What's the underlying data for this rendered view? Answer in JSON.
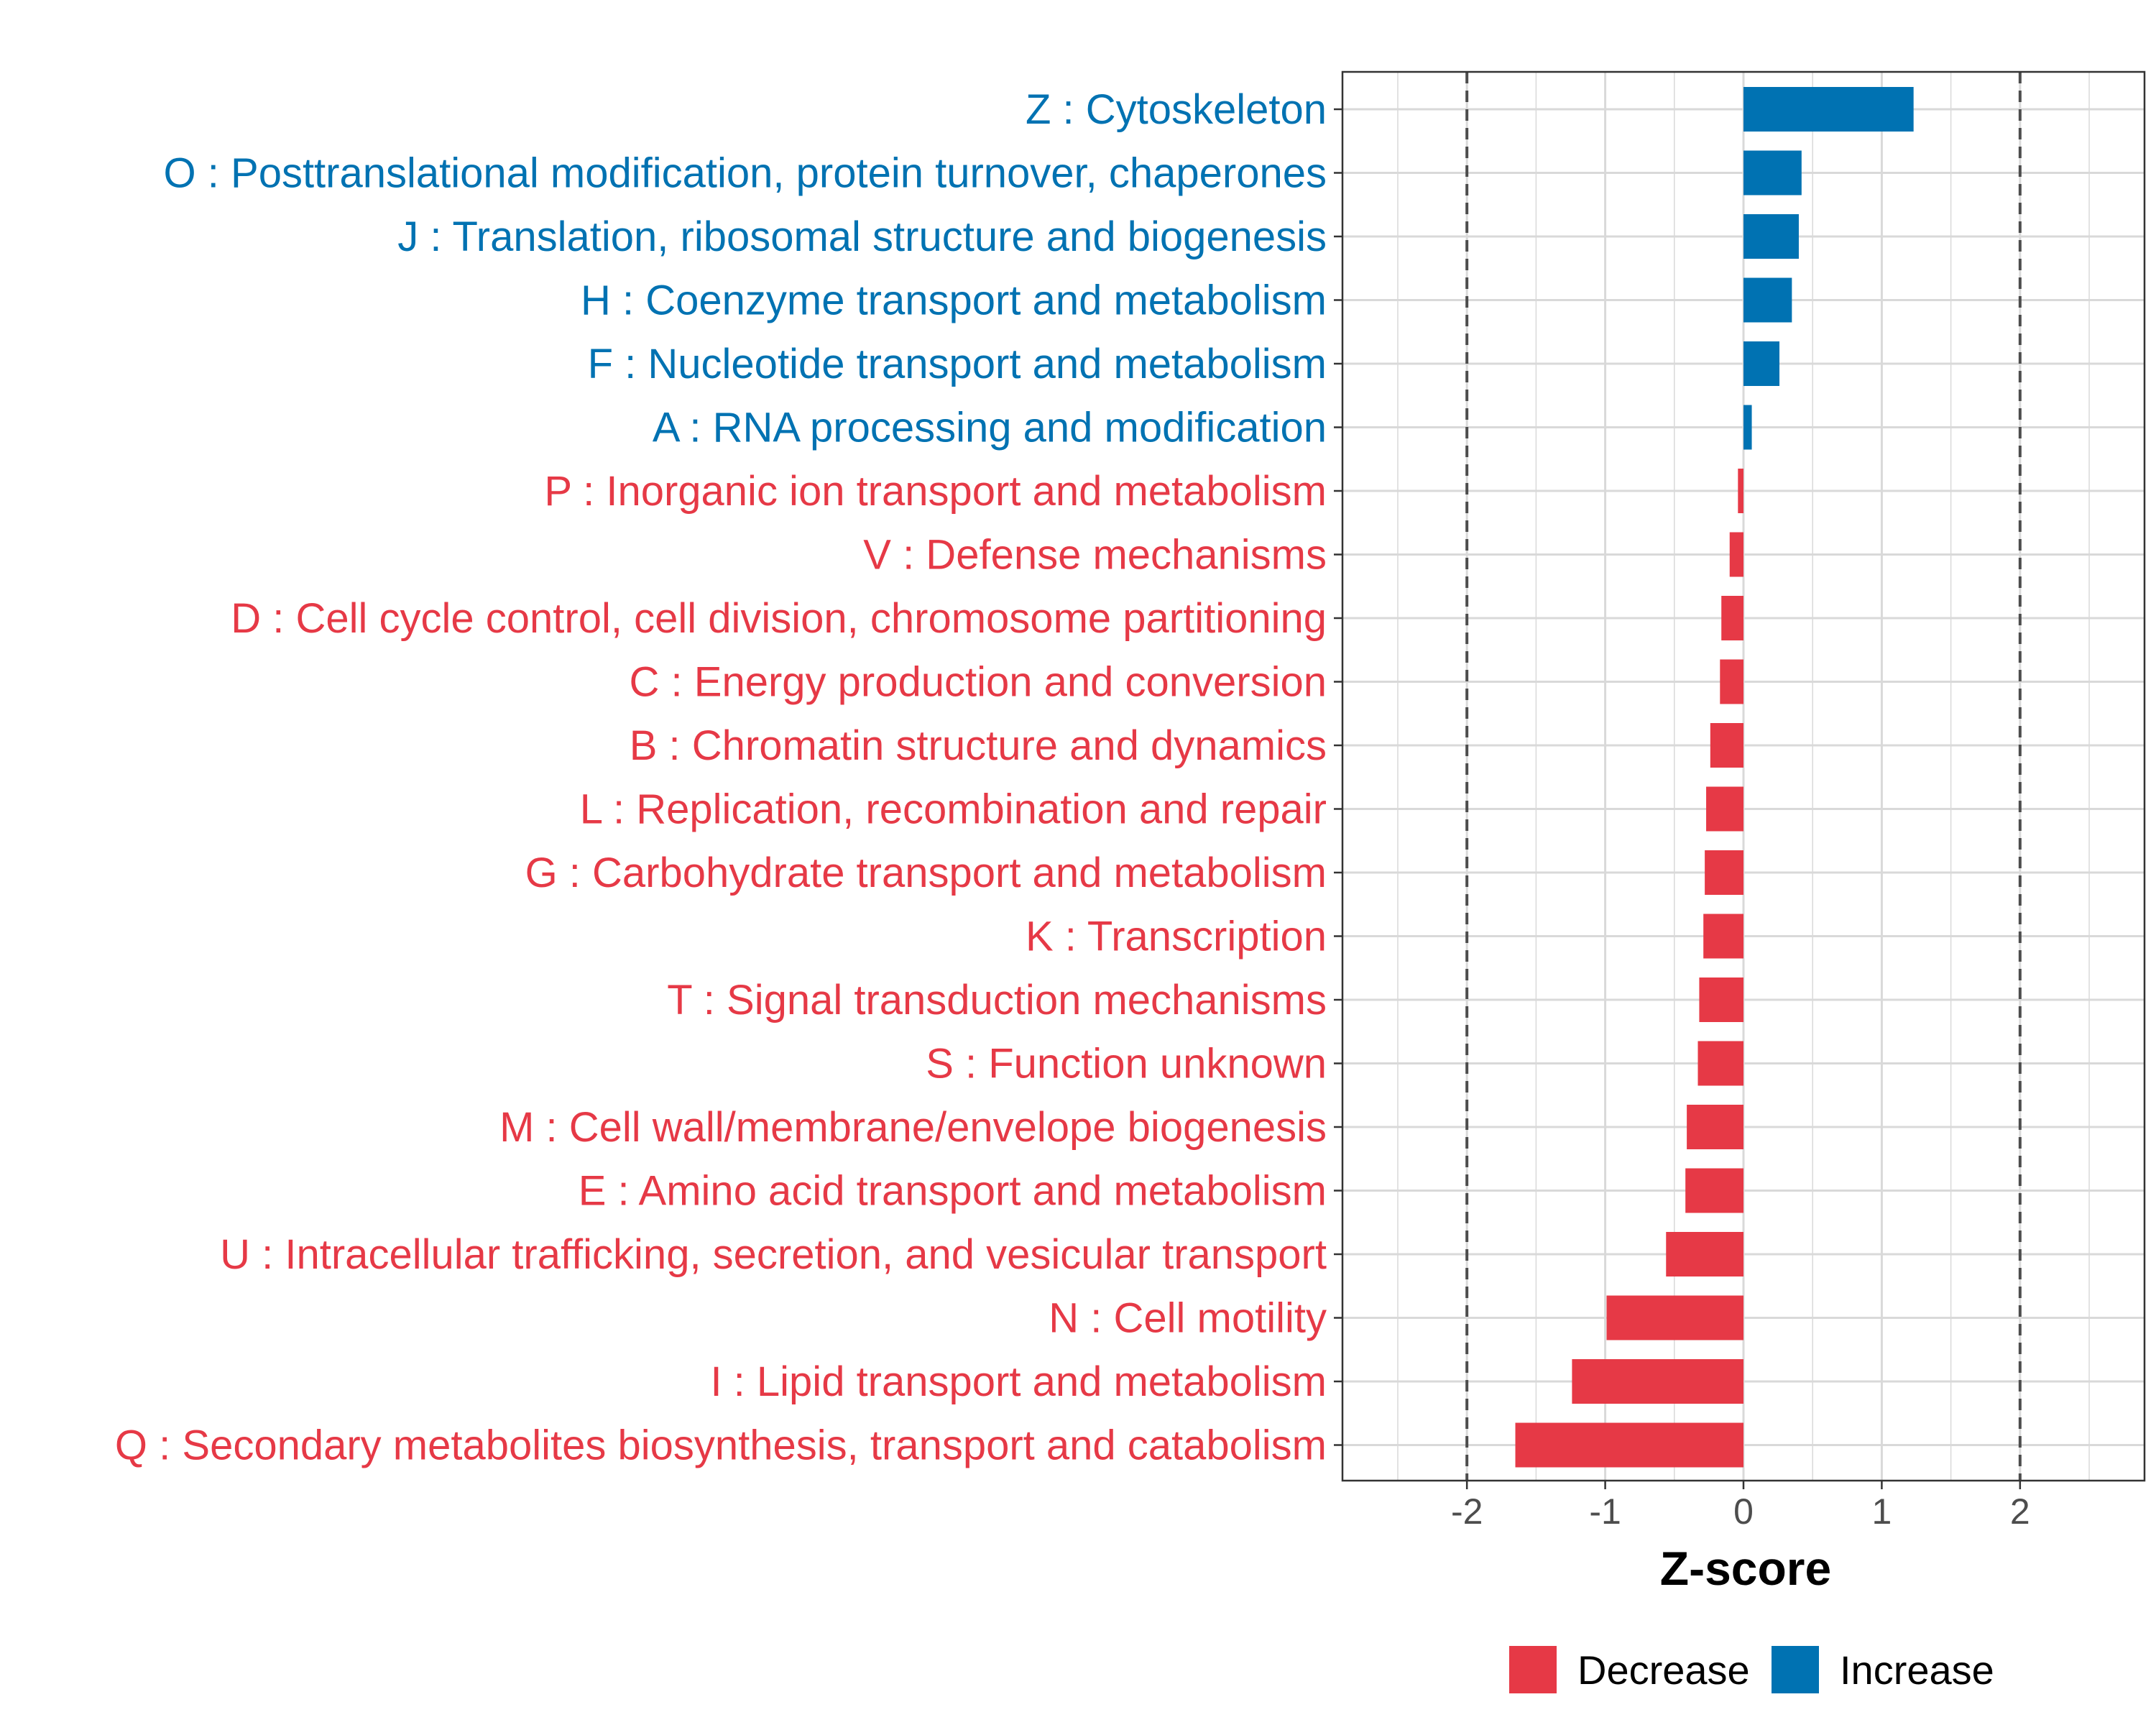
{
  "chart_data": {
    "type": "bar",
    "orientation": "horizontal",
    "xlabel": "Z-score",
    "ylabel": "",
    "xlim": [
      -2.9,
      2.9
    ],
    "x_ticks": [
      -2,
      -1,
      0,
      1,
      2
    ],
    "x_tick_labels": [
      "-2",
      "-1",
      "0",
      "1",
      "2"
    ],
    "reference_lines": [
      -2,
      2
    ],
    "grid": true,
    "legend_position": "bottom",
    "legend": [
      {
        "name": "Decrease",
        "color": "#E63946"
      },
      {
        "name": "Increase",
        "color": "#0072B2"
      }
    ],
    "categories": [
      {
        "label": "Z : Cytoskeleton",
        "value": 1.23,
        "group": "Increase"
      },
      {
        "label": "O : Posttranslational modification, protein turnover, chaperones",
        "value": 0.42,
        "group": "Increase"
      },
      {
        "label": "J : Translation, ribosomal structure and biogenesis",
        "value": 0.4,
        "group": "Increase"
      },
      {
        "label": "H : Coenzyme transport and metabolism",
        "value": 0.35,
        "group": "Increase"
      },
      {
        "label": "F : Nucleotide transport and metabolism",
        "value": 0.26,
        "group": "Increase"
      },
      {
        "label": "A : RNA processing and modification",
        "value": 0.06,
        "group": "Increase"
      },
      {
        "label": "P : Inorganic ion transport and metabolism",
        "value": -0.04,
        "group": "Decrease"
      },
      {
        "label": "V : Defense mechanisms",
        "value": -0.1,
        "group": "Decrease"
      },
      {
        "label": "D : Cell cycle control, cell division, chromosome partitioning",
        "value": -0.16,
        "group": "Decrease"
      },
      {
        "label": "C : Energy production and conversion",
        "value": -0.17,
        "group": "Decrease"
      },
      {
        "label": "B : Chromatin structure and dynamics",
        "value": -0.24,
        "group": "Decrease"
      },
      {
        "label": "L : Replication, recombination and repair",
        "value": -0.27,
        "group": "Decrease"
      },
      {
        "label": "G : Carbohydrate transport and metabolism",
        "value": -0.28,
        "group": "Decrease"
      },
      {
        "label": "K : Transcription",
        "value": -0.29,
        "group": "Decrease"
      },
      {
        "label": "T : Signal transduction mechanisms",
        "value": -0.32,
        "group": "Decrease"
      },
      {
        "label": "S : Function unknown",
        "value": -0.33,
        "group": "Decrease"
      },
      {
        "label": "M : Cell wall/membrane/envelope biogenesis",
        "value": -0.41,
        "group": "Decrease"
      },
      {
        "label": "E : Amino acid transport and metabolism",
        "value": -0.42,
        "group": "Decrease"
      },
      {
        "label": "U : Intracellular trafficking, secretion, and vesicular transport",
        "value": -0.56,
        "group": "Decrease"
      },
      {
        "label": "N : Cell motility",
        "value": -0.99,
        "group": "Decrease"
      },
      {
        "label": "I : Lipid transport and metabolism",
        "value": -1.24,
        "group": "Decrease"
      },
      {
        "label": "Q : Secondary metabolites biosynthesis, transport and catabolism",
        "value": -1.65,
        "group": "Decrease"
      }
    ]
  }
}
